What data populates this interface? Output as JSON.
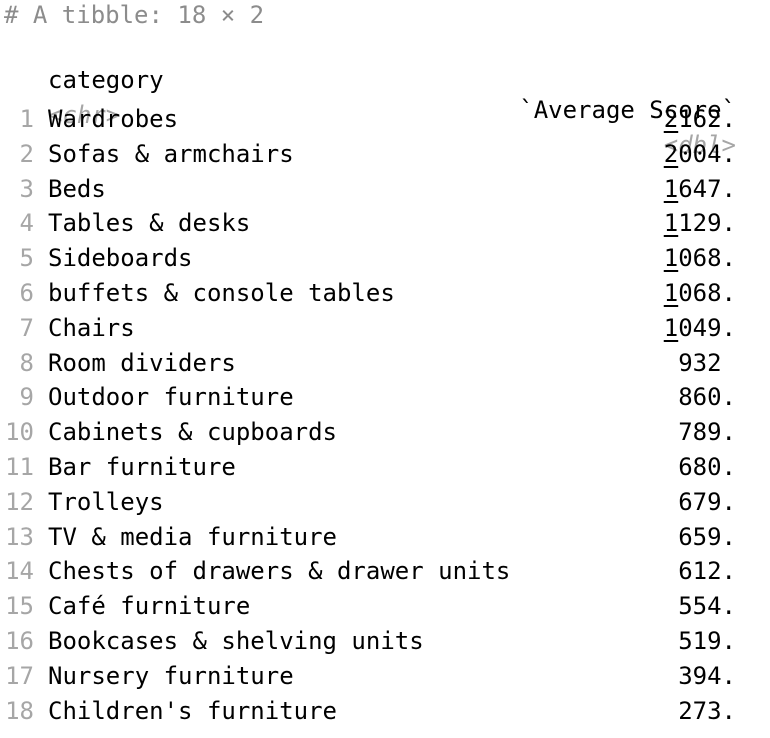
{
  "header": "# A tibble: 18 × 2",
  "columns": {
    "category": {
      "name": "category",
      "type": "<chr>"
    },
    "score": {
      "name": "`Average Score`",
      "type": "<dbl>"
    }
  },
  "rows": [
    {
      "index": "1",
      "category": "Wardrobes",
      "lead": "2",
      "rest": "162."
    },
    {
      "index": "2",
      "category": "Sofas & armchairs",
      "lead": "2",
      "rest": "004."
    },
    {
      "index": "3",
      "category": "Beds",
      "lead": "1",
      "rest": "647."
    },
    {
      "index": "4",
      "category": "Tables & desks",
      "lead": "1",
      "rest": "129."
    },
    {
      "index": "5",
      "category": "Sideboards",
      "lead": "1",
      "rest": "068."
    },
    {
      "index": "6",
      "category": "buffets & console tables",
      "lead": "1",
      "rest": "068."
    },
    {
      "index": "7",
      "category": "Chairs",
      "lead": "1",
      "rest": "049."
    },
    {
      "index": "8",
      "category": "Room dividers",
      "lead": "",
      "rest": "932 "
    },
    {
      "index": "9",
      "category": "Outdoor furniture",
      "lead": "",
      "rest": "860."
    },
    {
      "index": "10",
      "category": "Cabinets & cupboards",
      "lead": "",
      "rest": "789."
    },
    {
      "index": "11",
      "category": "Bar furniture",
      "lead": "",
      "rest": "680."
    },
    {
      "index": "12",
      "category": "Trolleys",
      "lead": "",
      "rest": "679."
    },
    {
      "index": "13",
      "category": "TV & media furniture",
      "lead": "",
      "rest": "659."
    },
    {
      "index": "14",
      "category": "Chests of drawers & drawer units",
      "lead": "",
      "rest": "612."
    },
    {
      "index": "15",
      "category": "Café furniture",
      "lead": "",
      "rest": "554."
    },
    {
      "index": "16",
      "category": "Bookcases & shelving units",
      "lead": "",
      "rest": "519."
    },
    {
      "index": "17",
      "category": "Nursery furniture",
      "lead": "",
      "rest": "394."
    },
    {
      "index": "18",
      "category": "Children's furniture",
      "lead": "",
      "rest": "273."
    }
  ]
}
